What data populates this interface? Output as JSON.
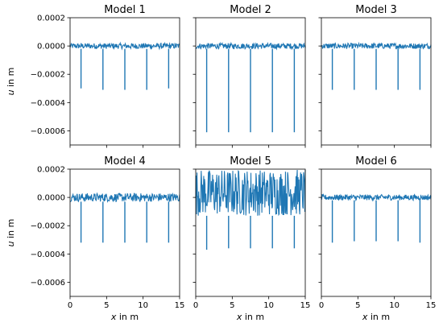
{
  "figure": {
    "ylabel_italic": "u",
    "ylabel_rest": " in m",
    "xlabel_italic": "x",
    "xlabel_rest": " in m",
    "line_color": "#1f77b4"
  },
  "chart_data": [
    {
      "type": "line",
      "title": "Model 1",
      "xlim": [
        0,
        15
      ],
      "ylim": [
        -0.0007,
        0.0002
      ],
      "xticks": [
        0,
        5,
        10,
        15
      ],
      "yticks": [
        0.0002,
        0.0,
        -0.0002,
        -0.0004,
        -0.0006
      ],
      "ytick_labels": [
        "0.0002",
        "0.0000",
        "−0.0002",
        "−0.0004",
        "−0.0006"
      ],
      "noise_band": [
        -2e-05,
        2e-05
      ],
      "spikes": [
        {
          "x": 1.5,
          "y": -0.0003
        },
        {
          "x": 4.5,
          "y": -0.00031
        },
        {
          "x": 7.5,
          "y": -0.00031
        },
        {
          "x": 10.5,
          "y": -0.00031
        },
        {
          "x": 13.5,
          "y": -0.0003
        }
      ]
    },
    {
      "type": "line",
      "title": "Model 2",
      "xlim": [
        0,
        15
      ],
      "ylim": [
        -0.0007,
        0.0002
      ],
      "xticks": [
        0,
        5,
        10,
        15
      ],
      "yticks": [
        0.0002,
        0.0,
        -0.0002,
        -0.0004,
        -0.0006
      ],
      "noise_band": [
        -2e-05,
        2e-05
      ],
      "spikes": [
        {
          "x": 1.5,
          "y": -0.00061
        },
        {
          "x": 4.5,
          "y": -0.00061
        },
        {
          "x": 7.5,
          "y": -0.00061
        },
        {
          "x": 10.5,
          "y": -0.00061
        },
        {
          "x": 13.5,
          "y": -0.00061
        }
      ]
    },
    {
      "type": "line",
      "title": "Model 3",
      "xlim": [
        0,
        15
      ],
      "ylim": [
        -0.0007,
        0.0002
      ],
      "xticks": [
        0,
        5,
        10,
        15
      ],
      "yticks": [
        0.0002,
        0.0,
        -0.0002,
        -0.0004,
        -0.0006
      ],
      "noise_band": [
        -2e-05,
        2e-05
      ],
      "spikes": [
        {
          "x": 1.5,
          "y": -0.00031
        },
        {
          "x": 4.5,
          "y": -0.00031
        },
        {
          "x": 7.5,
          "y": -0.00031
        },
        {
          "x": 10.5,
          "y": -0.00031
        },
        {
          "x": 13.5,
          "y": -0.00031
        }
      ]
    },
    {
      "type": "line",
      "title": "Model 4",
      "xlim": [
        0,
        15
      ],
      "ylim": [
        -0.0007,
        0.0002
      ],
      "xticks": [
        0,
        5,
        10,
        15
      ],
      "yticks": [
        0.0002,
        0.0,
        -0.0002,
        -0.0004,
        -0.0006
      ],
      "ytick_labels": [
        "0.0002",
        "0.0000",
        "−0.0002",
        "−0.0004",
        "−0.0006"
      ],
      "xtick_labels": [
        "0",
        "5",
        "10",
        "15"
      ],
      "noise_band": [
        -3e-05,
        3e-05
      ],
      "spikes": [
        {
          "x": 1.5,
          "y": -0.00032
        },
        {
          "x": 4.5,
          "y": -0.00032
        },
        {
          "x": 7.5,
          "y": -0.00032
        },
        {
          "x": 10.5,
          "y": -0.00032
        },
        {
          "x": 13.5,
          "y": -0.00032
        }
      ]
    },
    {
      "type": "line",
      "title": "Model 5",
      "xlim": [
        0,
        15
      ],
      "ylim": [
        -0.0007,
        0.0002
      ],
      "xticks": [
        0,
        5,
        10,
        15
      ],
      "yticks": [
        0.0002,
        0.0,
        -0.0002,
        -0.0004,
        -0.0006
      ],
      "xtick_labels": [
        "0",
        "5",
        "10",
        "15"
      ],
      "noise_band": [
        -0.00013,
        0.0002
      ],
      "spikes": [
        {
          "x": 1.5,
          "y": -0.00037
        },
        {
          "x": 4.5,
          "y": -0.00036
        },
        {
          "x": 7.5,
          "y": -0.00036
        },
        {
          "x": 10.5,
          "y": -0.00036
        },
        {
          "x": 13.5,
          "y": -0.00036
        }
      ]
    },
    {
      "type": "line",
      "title": "Model 6",
      "xlim": [
        0,
        15
      ],
      "ylim": [
        -0.0007,
        0.0002
      ],
      "xticks": [
        0,
        5,
        10,
        15
      ],
      "yticks": [
        0.0002,
        0.0,
        -0.0002,
        -0.0004,
        -0.0006
      ],
      "xtick_labels": [
        "0",
        "5",
        "10",
        "15"
      ],
      "noise_band": [
        -2e-05,
        2e-05
      ],
      "spikes": [
        {
          "x": 1.5,
          "y": -0.00032
        },
        {
          "x": 4.5,
          "y": -0.00031
        },
        {
          "x": 7.5,
          "y": -0.00031
        },
        {
          "x": 10.5,
          "y": -0.00031
        },
        {
          "x": 13.5,
          "y": -0.00032
        }
      ]
    }
  ]
}
